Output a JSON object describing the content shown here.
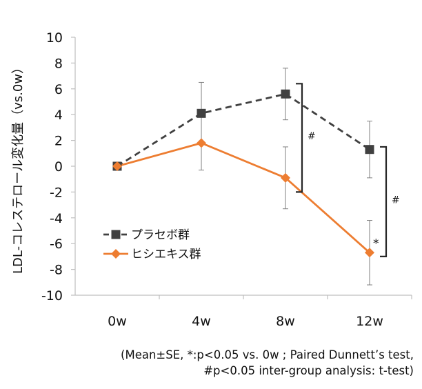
{
  "chart_data": {
    "type": "line",
    "ylabel": "LDL-コレステロール変化量（vs.0w）",
    "categories": [
      "0w",
      "4w",
      "8w",
      "12w"
    ],
    "ylim": [
      -10,
      10
    ],
    "yticks": [
      "10",
      "8",
      "6",
      "4",
      "2",
      "0",
      "-2",
      "-4",
      "-6",
      "-8",
      "-10"
    ],
    "series": [
      {
        "name": "プラセボ群",
        "color": "#404040",
        "marker": "square",
        "dash": true,
        "values": [
          0,
          4.1,
          5.6,
          1.3
        ],
        "err": [
          0,
          2.4,
          2.0,
          2.2
        ]
      },
      {
        "name": "ヒシエキス群",
        "color": "#ED7D31",
        "marker": "diamond",
        "dash": false,
        "values": [
          0,
          1.8,
          -0.9,
          -6.7
        ],
        "err": [
          0,
          2.1,
          2.4,
          2.5
        ]
      }
    ],
    "significance": [
      {
        "label": "#",
        "category": "8w",
        "range": [
          -2.0,
          6.4
        ]
      },
      {
        "label": "#",
        "category": "12w",
        "range": [
          -7.0,
          1.5
        ]
      },
      {
        "label": "*",
        "category": "12w",
        "series": 1
      }
    ],
    "legend_position": "lower-left",
    "grid": false
  },
  "note": {
    "line1": "(Mean±SE, *:p<0.05 vs. 0w ; Paired Dunnett’s test,",
    "line2": "#p<0.05 inter-group analysis: t-test)"
  }
}
